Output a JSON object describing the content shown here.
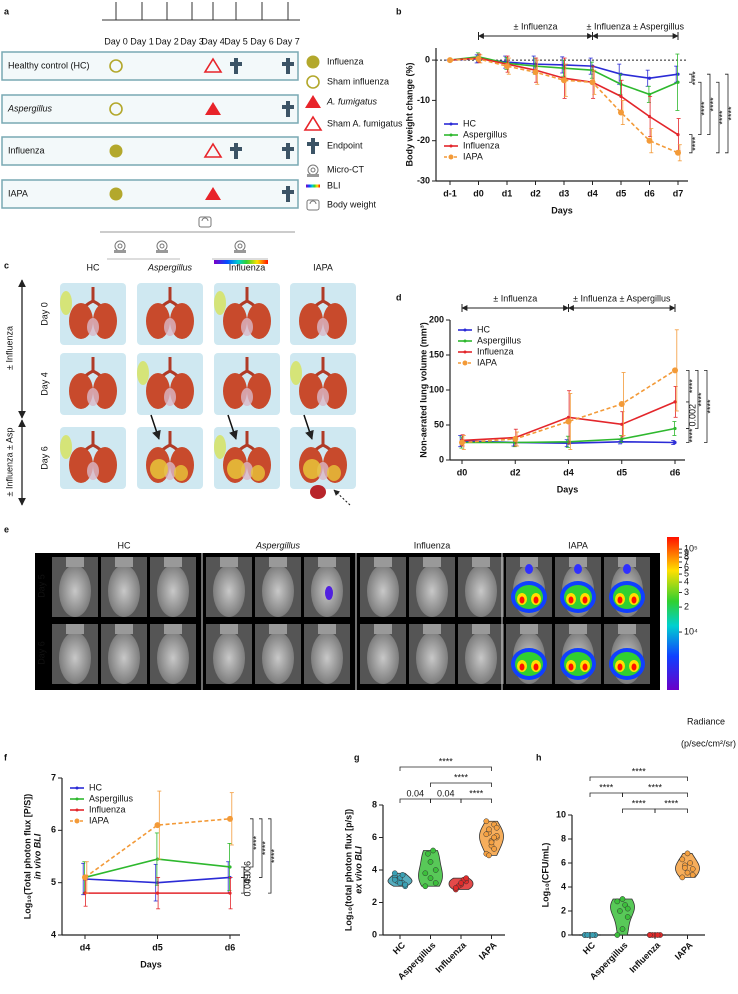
{
  "panel_labels": [
    "a",
    "b",
    "c",
    "d",
    "e",
    "f",
    "g",
    "h"
  ],
  "timeline": {
    "days": [
      "Day 0",
      "Day 1",
      "Day 2",
      "Day 3",
      "Day 4",
      "Day 5",
      "Day 6",
      "Day 7"
    ],
    "groups": [
      "Healthy control (HC)",
      "Aspergillus",
      "Influenza",
      "IAPA"
    ],
    "legend": [
      "Influenza",
      "Sham influenza",
      "A. fumigatus",
      "Sham A. fumigatus",
      "Endpoint",
      "Micro-CT",
      "BLI",
      "Body weight"
    ]
  },
  "imaging_c": {
    "groups": [
      "HC",
      "Aspergillus",
      "Influenza",
      "IAPA"
    ],
    "colors": [
      "#2b2bd6",
      "#2eb82e",
      "#e3262b",
      "#f39a38"
    ],
    "days": [
      "Day 0",
      "Day 4",
      "Day 6"
    ],
    "phases": [
      "± Influenza",
      "± Influenza ± Asp"
    ]
  },
  "imaging_e": {
    "groups": [
      "HC",
      "Aspergillus",
      "Influenza",
      "IAPA"
    ],
    "colors": [
      "#2b2bd6",
      "#2eb82e",
      "#e3262b",
      "#f39a38"
    ],
    "days": [
      "Day 5",
      "Day 6"
    ],
    "colorbar_lim": [
      2000,
      140000
    ],
    "colorbar_ticks": [
      {
        "value": 100000,
        "label": "10⁵"
      },
      {
        "value": 90000,
        "label": "9"
      },
      {
        "value": 80000,
        "label": "8"
      },
      {
        "value": 70000,
        "label": "7"
      },
      {
        "value": 60000,
        "label": "6"
      },
      {
        "value": 50000,
        "label": "5"
      },
      {
        "value": 40000,
        "label": "4"
      },
      {
        "value": 30000,
        "label": "3"
      },
      {
        "value": 20000,
        "label": "2"
      },
      {
        "value": 10000,
        "label": "10⁴"
      }
    ],
    "colorbar_title": "Radiance",
    "colorbar_unit": "(p/sec/cm²/sr)"
  },
  "chart_data": [
    {
      "type": "line",
      "xlabel": "Days",
      "ylabel": "Body weight change (%)",
      "categories": [
        "d-1",
        "d0",
        "d1",
        "d2",
        "d3",
        "d4",
        "d5",
        "d6",
        "d7"
      ],
      "ylim": [
        -30,
        3
      ],
      "yticks": [
        -30,
        -20,
        -10,
        0
      ],
      "reference_line": 0,
      "legend": "lower left",
      "periods": [
        {
          "label": "± Influenza",
          "from": "d0",
          "to": "d4"
        },
        {
          "label": "± Influenza ± Aspergillus",
          "from": "d4",
          "to": "d7"
        }
      ],
      "series": [
        {
          "name": "HC",
          "color": "#2b2bd6",
          "values": [
            0,
            0.3,
            -0.5,
            -1,
            -1.2,
            -1.5,
            -3.5,
            -4.5,
            -3.5
          ],
          "errors": [
            0,
            1,
            1.5,
            2,
            2,
            2,
            2.5,
            2,
            2
          ]
        },
        {
          "name": "Aspergillus",
          "color": "#2eb82e",
          "values": [
            0,
            0.8,
            -0.8,
            -1.5,
            -2,
            -2.5,
            -6,
            -8.5,
            -5.5
          ],
          "errors": [
            0,
            1,
            1.5,
            2,
            2,
            2,
            2.5,
            2,
            7
          ]
        },
        {
          "name": "Influenza",
          "color": "#e3262b",
          "values": [
            0,
            0.5,
            -1,
            -2.5,
            -4.5,
            -5.5,
            -9,
            -14,
            -18.5
          ],
          "errors": [
            0,
            1,
            2,
            3,
            5,
            4,
            4,
            5,
            4
          ]
        },
        {
          "name": "IAPA",
          "color": "#f39a38",
          "linestyle": "dashed",
          "values": [
            0,
            0.3,
            -1.5,
            -3,
            -5,
            -5.5,
            -13,
            -20,
            -23
          ],
          "errors": [
            0,
            1,
            2,
            3,
            4,
            3,
            3,
            3,
            2
          ]
        }
      ],
      "significance": [
        "****",
        "****",
        "****",
        "****",
        "****",
        "****"
      ]
    },
    {
      "type": "line",
      "xlabel": "Days",
      "ylabel": "Non-aerated lung volume (mm³)",
      "categories": [
        "d0",
        "d2",
        "d4",
        "d5",
        "d6"
      ],
      "ylim": [
        0,
        200
      ],
      "yticks": [
        0,
        50,
        100,
        150,
        200
      ],
      "legend": "upper left",
      "periods": [
        {
          "label": "± Influenza",
          "from": "d0",
          "to": "d4"
        },
        {
          "label": "± Influenza ± Aspergillus",
          "from": "d4",
          "to": "d6"
        }
      ],
      "series": [
        {
          "name": "HC",
          "color": "#2b2bd6",
          "values": [
            27,
            25,
            24,
            26,
            25
          ],
          "errors": [
            8,
            5,
            5,
            3,
            3
          ]
        },
        {
          "name": "Aspergillus",
          "color": "#2eb82e",
          "values": [
            25,
            25,
            26,
            30,
            45
          ],
          "errors": [
            8,
            6,
            8,
            5,
            10
          ]
        },
        {
          "name": "Influenza",
          "color": "#e3262b",
          "values": [
            28,
            32,
            61,
            51,
            83
          ],
          "errors": [
            8,
            12,
            38,
            18,
            22
          ]
        },
        {
          "name": "IAPA",
          "color": "#f39a38",
          "linestyle": "dashed",
          "values": [
            25,
            30,
            55,
            80,
            128
          ],
          "errors": [
            10,
            10,
            40,
            45,
            58
          ]
        }
      ],
      "significance": [
        "****",
        "0.002",
        "****",
        "****",
        "****"
      ]
    },
    {
      "type": "line",
      "xlabel": "Days",
      "ylabel": "Log₁₀(Total photon flux [P/S])",
      "ylabel_sub": "in vivo BLI",
      "categories": [
        "d4",
        "d5",
        "d6"
      ],
      "ylim": [
        4,
        7
      ],
      "yticks": [
        4,
        5,
        6,
        7
      ],
      "legend": "upper left",
      "series": [
        {
          "name": "HC",
          "color": "#2b2bd6",
          "values": [
            5.07,
            5.0,
            5.1
          ],
          "errors": [
            0.3,
            0.35,
            0.3
          ]
        },
        {
          "name": "Aspergillus",
          "color": "#2eb82e",
          "values": [
            5.1,
            5.45,
            5.3
          ],
          "errors": [
            0.3,
            0.5,
            0.45
          ]
        },
        {
          "name": "Influenza",
          "color": "#e3262b",
          "values": [
            4.8,
            4.8,
            4.8
          ],
          "errors": [
            0.25,
            0.3,
            0.3
          ]
        },
        {
          "name": "IAPA",
          "color": "#f39a38",
          "linestyle": "dashed",
          "values": [
            5.1,
            6.1,
            6.22
          ],
          "errors": [
            0.3,
            0.65,
            0.5
          ]
        }
      ],
      "significance": [
        "****",
        "****",
        "****",
        "0.006",
        "0.049"
      ]
    },
    {
      "type": "violin",
      "ylabel": "Log₁₀(total photon flux [p/s])",
      "ylabel_sub": "ex vivo BLI",
      "categories": [
        "HC",
        "Aspergillus",
        "Influenza",
        "IAPA"
      ],
      "colors": [
        "#3aa0b4",
        "#3bbf3b",
        "#e02a2a",
        "#f5a040"
      ],
      "ylim": [
        0,
        8
      ],
      "yticks": [
        0,
        2,
        4,
        6,
        8
      ],
      "points": [
        [
          3.6,
          3.3,
          3.0,
          3.4,
          3.2,
          3.8,
          3.5,
          3.1,
          3.3,
          3.7,
          3.4,
          3.2
        ],
        [
          3.0,
          3.5,
          4.0,
          5.0,
          5.2,
          3.8,
          4.5,
          3.2
        ],
        [
          2.8,
          3.1,
          3.3,
          3.0,
          3.4,
          2.9,
          3.2,
          3.5
        ],
        [
          5.0,
          5.5,
          6.0,
          6.3,
          6.8,
          7.0,
          5.8,
          6.1,
          6.5,
          5.3,
          6.2,
          5.7,
          6.6,
          4.9,
          6.0
        ]
      ],
      "significance": [
        "****",
        "****",
        "0.04",
        "0.04",
        "****"
      ]
    },
    {
      "type": "violin",
      "ylabel": "Log₁₀(CFU/mL)",
      "categories": [
        "HC",
        "Aspergillus",
        "Influenza",
        "IAPA"
      ],
      "colors": [
        "#3aa0b4",
        "#3bbf3b",
        "#e02a2a",
        "#f5a040"
      ],
      "ylim": [
        0,
        10
      ],
      "yticks": [
        0,
        2,
        4,
        6,
        8,
        10
      ],
      "points": [
        [
          0,
          0,
          0,
          0,
          0,
          0,
          0,
          0,
          0,
          0
        ],
        [
          0,
          0.5,
          1.5,
          2.0,
          2.5,
          2.8,
          3.0,
          2.2
        ],
        [
          0,
          0,
          0,
          0,
          0,
          0
        ],
        [
          4.8,
          5.2,
          5.5,
          5.8,
          6.0,
          6.3,
          6.8,
          5.0,
          5.6
        ]
      ],
      "significance": [
        "****",
        "****",
        "****",
        "****",
        "****"
      ]
    }
  ]
}
